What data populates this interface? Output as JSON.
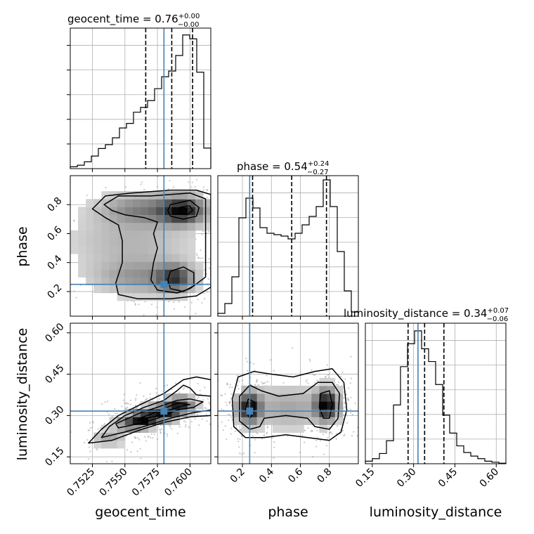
{
  "chart_data": {
    "type": "corner",
    "parameters": [
      "geocent_time",
      "phase",
      "luminosity_distance"
    ],
    "truths": {
      "geocent_time": 0.758,
      "phase": 0.25,
      "luminosity_distance": 0.316
    },
    "titles": [
      {
        "param": "geocent_time",
        "prefix": "geocent_time = ",
        "value": "0.76",
        "plus": "+0.00",
        "minus": "−0.00"
      },
      {
        "param": "phase",
        "prefix": "phase = ",
        "value": "0.54",
        "plus": "+0.24",
        "minus": "−0.27"
      },
      {
        "param": "luminosity_distance",
        "prefix": "luminosity_distance = ",
        "value": "0.34",
        "plus": "+0.07",
        "minus": "−0.06"
      }
    ],
    "ranges": {
      "geocent_time": [
        0.7508,
        0.7616
      ],
      "phase": [
        0.03,
        1.0
      ],
      "luminosity_distance": [
        0.125,
        0.635
      ]
    },
    "ticks": {
      "geocent_time": [
        {
          "v": 0.7525,
          "label": "0.7525"
        },
        {
          "v": 0.755,
          "label": "0.7550"
        },
        {
          "v": 0.7575,
          "label": "0.7575"
        },
        {
          "v": 0.76,
          "label": "0.7600"
        }
      ],
      "phase": [
        {
          "v": 0.2,
          "label": "0.2"
        },
        {
          "v": 0.4,
          "label": "0.4"
        },
        {
          "v": 0.6,
          "label": "0.6"
        },
        {
          "v": 0.8,
          "label": "0.8"
        }
      ],
      "luminosity_distance": [
        {
          "v": 0.15,
          "label": "0.15"
        },
        {
          "v": 0.3,
          "label": "0.30"
        },
        {
          "v": 0.45,
          "label": "0.45"
        },
        {
          "v": 0.6,
          "label": "0.60"
        }
      ]
    },
    "quantiles": {
      "geocent_time": [
        0.7566,
        0.7586,
        0.7602
      ],
      "phase": [
        0.27,
        0.54,
        0.78
      ],
      "luminosity_distance": [
        0.28,
        0.34,
        0.41
      ]
    },
    "histograms": {
      "geocent_time": {
        "edges": [
          0.7508,
          0.75134,
          0.75188,
          0.75242,
          0.75296,
          0.7535,
          0.75404,
          0.75458,
          0.75512,
          0.75566,
          0.7562,
          0.75674,
          0.75728,
          0.75782,
          0.75836,
          0.7589,
          0.75944,
          0.75998,
          0.76052,
          0.76106,
          0.7616
        ],
        "counts": [
          0.8,
          1.5,
          3.0,
          5.5,
          8.8,
          10.5,
          13.5,
          17.8,
          19.8,
          24.7,
          26.8,
          29.8,
          35.0,
          40.2,
          42.7,
          49.5,
          58.5,
          56.8,
          42.2,
          9.0
        ]
      },
      "phase": {
        "edges": [
          0.03,
          0.0785,
          0.127,
          0.1755,
          0.224,
          0.2725,
          0.321,
          0.3695,
          0.418,
          0.4665,
          0.515,
          0.5635,
          0.612,
          0.6605,
          0.709,
          0.7575,
          0.806,
          0.8545,
          0.903,
          0.9515,
          1.0
        ],
        "counts": [
          1.0,
          4.5,
          14.0,
          35.0,
          42.0,
          38.5,
          31.5,
          29.5,
          29.0,
          28.5,
          27.5,
          29.5,
          32.5,
          35.5,
          39.0,
          48.5,
          39.0,
          23.0,
          9.0,
          1.5
        ]
      },
      "luminosity_distance": {
        "edges": [
          0.125,
          0.1505,
          0.176,
          0.2015,
          0.227,
          0.2525,
          0.278,
          0.3035,
          0.329,
          0.3545,
          0.38,
          0.4055,
          0.431,
          0.4565,
          0.482,
          0.5075,
          0.533,
          0.5585,
          0.584,
          0.6095,
          0.635
        ],
        "counts": [
          0.5,
          1.0,
          2.0,
          4.5,
          11.5,
          19.0,
          23.5,
          26.0,
          22.5,
          20.0,
          15.5,
          9.5,
          6.0,
          3.5,
          2.2,
          1.5,
          1.0,
          0.5,
          0.3,
          0.1
        ]
      }
    },
    "histogram_ymax": {
      "geocent_time": 61.5,
      "phase": 50.0,
      "luminosity_distance": 27.5
    },
    "pairs": [
      {
        "x": "geocent_time",
        "y": "phase",
        "density_peaks": [
          {
            "x": 0.7594,
            "y": 0.76,
            "sx": 0.0011,
            "sy": 0.06,
            "w": 1.0
          },
          {
            "x": 0.7588,
            "y": 0.29,
            "sx": 0.0009,
            "sy": 0.06,
            "w": 0.8
          },
          {
            "x": 0.7565,
            "y": 0.77,
            "sx": 0.0022,
            "sy": 0.07,
            "w": 0.45
          },
          {
            "x": 0.7562,
            "y": 0.3,
            "sx": 0.0024,
            "sy": 0.08,
            "w": 0.35
          },
          {
            "x": 0.7555,
            "y": 0.55,
            "sx": 0.0032,
            "sy": 0.14,
            "w": 0.22
          }
        ],
        "contours": [
          [
            [
              0.7597,
              0.79
            ],
            [
              0.7592,
              0.78
            ],
            [
              0.7592,
              0.74
            ],
            [
              0.7598,
              0.73
            ],
            [
              0.7602,
              0.76
            ],
            [
              0.76,
              0.79
            ]
          ],
          [
            [
              0.7585,
              0.8
            ],
            [
              0.7583,
              0.76
            ],
            [
              0.7585,
              0.72
            ],
            [
              0.7595,
              0.7
            ],
            [
              0.7605,
              0.72
            ],
            [
              0.7607,
              0.78
            ],
            [
              0.76,
              0.83
            ]
          ],
          [
            [
              0.7534,
              0.8
            ],
            [
              0.7545,
              0.86
            ],
            [
              0.757,
              0.86
            ],
            [
              0.76,
              0.88
            ],
            [
              0.7612,
              0.84
            ],
            [
              0.7612,
              0.3
            ],
            [
              0.76,
              0.22
            ],
            [
              0.759,
              0.19
            ],
            [
              0.7575,
              0.21
            ],
            [
              0.757,
              0.28
            ],
            [
              0.7572,
              0.4
            ],
            [
              0.7575,
              0.5
            ],
            [
              0.7572,
              0.6
            ],
            [
              0.7575,
              0.68
            ],
            [
              0.7565,
              0.71
            ],
            [
              0.755,
              0.73
            ],
            [
              0.754,
              0.76
            ]
          ],
          [
            [
              0.7525,
              0.77
            ],
            [
              0.7535,
              0.86
            ],
            [
              0.7555,
              0.88
            ],
            [
              0.7585,
              0.9
            ],
            [
              0.7605,
              0.9
            ],
            [
              0.7616,
              0.87
            ],
            [
              0.7616,
              0.23
            ],
            [
              0.7605,
              0.17
            ],
            [
              0.7585,
              0.15
            ],
            [
              0.756,
              0.15
            ],
            [
              0.7545,
              0.18
            ],
            [
              0.7543,
              0.26
            ],
            [
              0.7548,
              0.4
            ],
            [
              0.7548,
              0.55
            ],
            [
              0.7545,
              0.66
            ],
            [
              0.7535,
              0.71
            ]
          ],
          [
            [
              0.7585,
              0.34
            ],
            [
              0.7583,
              0.28
            ],
            [
              0.7585,
              0.22
            ],
            [
              0.7595,
              0.2
            ],
            [
              0.7603,
              0.24
            ],
            [
              0.7603,
              0.33
            ],
            [
              0.7595,
              0.37
            ]
          ]
        ]
      },
      {
        "x": "geocent_time",
        "y": "luminosity_distance",
        "density_peaks": [
          {
            "x": 0.7565,
            "y": 0.29,
            "sx": 0.0007,
            "sy": 0.018,
            "w": 1.0
          },
          {
            "x": 0.758,
            "y": 0.31,
            "sx": 0.0008,
            "sy": 0.018,
            "w": 0.9
          },
          {
            "x": 0.7592,
            "y": 0.34,
            "sx": 0.0007,
            "sy": 0.018,
            "w": 0.85
          },
          {
            "x": 0.7554,
            "y": 0.27,
            "sx": 0.0007,
            "sy": 0.016,
            "w": 0.55
          },
          {
            "x": 0.7538,
            "y": 0.22,
            "sx": 0.0008,
            "sy": 0.02,
            "w": 0.25
          }
        ],
        "contours": [
          [
            [
              0.756,
              0.28
            ],
            [
              0.7567,
              0.29
            ],
            [
              0.7576,
              0.3
            ],
            [
              0.7585,
              0.32
            ],
            [
              0.7594,
              0.335
            ],
            [
              0.76,
              0.34
            ],
            [
              0.759,
              0.345
            ],
            [
              0.758,
              0.325
            ],
            [
              0.757,
              0.305
            ],
            [
              0.7561,
              0.29
            ]
          ],
          [
            [
              0.7545,
              0.255
            ],
            [
              0.756,
              0.27
            ],
            [
              0.7575,
              0.29
            ],
            [
              0.759,
              0.32
            ],
            [
              0.7603,
              0.33
            ],
            [
              0.761,
              0.35
            ],
            [
              0.76,
              0.36
            ],
            [
              0.759,
              0.355
            ],
            [
              0.7575,
              0.33
            ],
            [
              0.7562,
              0.31
            ],
            [
              0.755,
              0.285
            ],
            [
              0.7543,
              0.27
            ]
          ],
          [
            [
              0.7532,
              0.22
            ],
            [
              0.755,
              0.24
            ],
            [
              0.7568,
              0.265
            ],
            [
              0.7585,
              0.29
            ],
            [
              0.7602,
              0.31
            ],
            [
              0.7616,
              0.32
            ],
            [
              0.7616,
              0.37
            ],
            [
              0.7605,
              0.375
            ],
            [
              0.76,
              0.4
            ],
            [
              0.7595,
              0.41
            ],
            [
              0.759,
              0.39
            ],
            [
              0.758,
              0.355
            ],
            [
              0.7565,
              0.33
            ],
            [
              0.755,
              0.3
            ],
            [
              0.7538,
              0.26
            ]
          ],
          [
            [
              0.7522,
              0.2
            ],
            [
              0.754,
              0.21
            ],
            [
              0.756,
              0.245
            ],
            [
              0.758,
              0.275
            ],
            [
              0.76,
              0.295
            ],
            [
              0.7616,
              0.3
            ],
            [
              0.7616,
              0.43
            ],
            [
              0.7605,
              0.44
            ],
            [
              0.7595,
              0.43
            ],
            [
              0.758,
              0.38
            ],
            [
              0.7562,
              0.34
            ],
            [
              0.7545,
              0.3
            ],
            [
              0.7532,
              0.25
            ]
          ]
        ]
      },
      {
        "x": "phase",
        "y": "luminosity_distance",
        "density_peaks": [
          {
            "x": 0.25,
            "y": 0.33,
            "sx": 0.05,
            "sy": 0.035,
            "w": 0.95
          },
          {
            "x": 0.78,
            "y": 0.34,
            "sx": 0.05,
            "sy": 0.035,
            "w": 1.0
          },
          {
            "x": 0.52,
            "y": 0.33,
            "sx": 0.18,
            "sy": 0.05,
            "w": 0.25
          }
        ],
        "contours": [
          [
            [
              0.24,
              0.36
            ],
            [
              0.22,
              0.32
            ],
            [
              0.25,
              0.29
            ],
            [
              0.28,
              0.31
            ],
            [
              0.28,
              0.35
            ]
          ],
          [
            [
              0.74,
              0.38
            ],
            [
              0.73,
              0.33
            ],
            [
              0.76,
              0.29
            ],
            [
              0.8,
              0.29
            ],
            [
              0.82,
              0.34
            ],
            [
              0.8,
              0.39
            ]
          ],
          [
            [
              0.18,
              0.37
            ],
            [
              0.18,
              0.28
            ],
            [
              0.25,
              0.25
            ],
            [
              0.32,
              0.26
            ],
            [
              0.35,
              0.29
            ],
            [
              0.5,
              0.3
            ],
            [
              0.65,
              0.29
            ],
            [
              0.7,
              0.26
            ],
            [
              0.8,
              0.25
            ],
            [
              0.86,
              0.29
            ],
            [
              0.87,
              0.38
            ],
            [
              0.82,
              0.42
            ],
            [
              0.72,
              0.42
            ],
            [
              0.62,
              0.38
            ],
            [
              0.45,
              0.37
            ],
            [
              0.33,
              0.39
            ],
            [
              0.25,
              0.41
            ]
          ],
          [
            [
              0.13,
              0.36
            ],
            [
              0.14,
              0.26
            ],
            [
              0.22,
              0.22
            ],
            [
              0.35,
              0.22
            ],
            [
              0.5,
              0.23
            ],
            [
              0.65,
              0.22
            ],
            [
              0.8,
              0.21
            ],
            [
              0.88,
              0.24
            ],
            [
              0.92,
              0.32
            ],
            [
              0.9,
              0.42
            ],
            [
              0.82,
              0.47
            ],
            [
              0.7,
              0.46
            ],
            [
              0.55,
              0.44
            ],
            [
              0.4,
              0.45
            ],
            [
              0.28,
              0.46
            ],
            [
              0.17,
              0.44
            ]
          ]
        ]
      }
    ]
  }
}
